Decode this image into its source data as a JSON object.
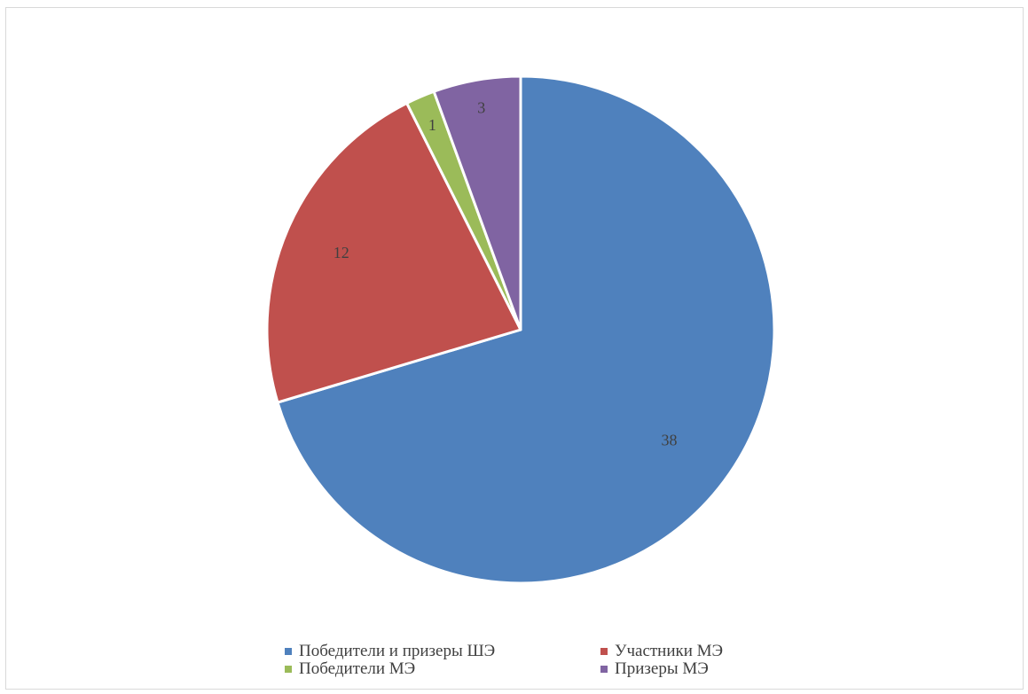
{
  "chart_data": {
    "type": "pie",
    "categories": [
      "Победители и призеры ШЭ",
      "Участники МЭ",
      "Победители МЭ",
      "Призеры МЭ"
    ],
    "values": [
      38,
      12,
      1,
      3
    ],
    "data_labels": [
      "38",
      "12",
      "1",
      "3"
    ],
    "colors": [
      "#4F81BD",
      "#C0504D",
      "#9BBB59",
      "#8064A2"
    ],
    "start_angle_deg": 0,
    "direction": "clockwise",
    "legend_position": "bottom",
    "title": ""
  }
}
